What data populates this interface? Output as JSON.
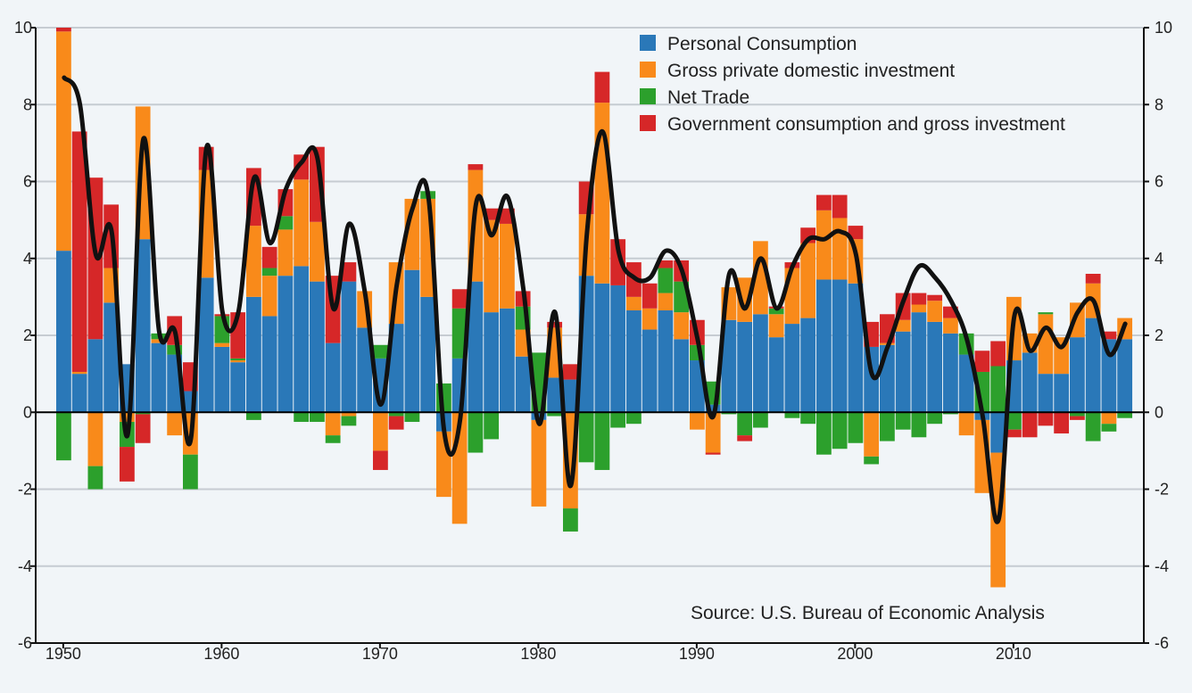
{
  "chart_data": {
    "type": "bar",
    "stacked": true,
    "title": "",
    "xlabel": "",
    "ylabel": "",
    "source": "Source: U.S. Bureau of Economic Analysis",
    "ylim": [
      -6,
      10
    ],
    "y_ticks": [
      "-6",
      "-4",
      "-2",
      "0",
      "2",
      "4",
      "6",
      "8",
      "10"
    ],
    "y_tick_values": [
      -6,
      -4,
      -2,
      0,
      2,
      4,
      6,
      8,
      10
    ],
    "x_ticks": [
      "1950",
      "1960",
      "1970",
      "1980",
      "1990",
      "2000",
      "2010"
    ],
    "x_tick_values": [
      1950,
      1960,
      1970,
      1980,
      1990,
      2000,
      2010
    ],
    "secondary_y_axis": true,
    "grid": "horizontal",
    "legend_position": "top-center",
    "zero_line": true,
    "x": [
      1950,
      1951,
      1952,
      1953,
      1954,
      1955,
      1956,
      1957,
      1958,
      1959,
      1960,
      1961,
      1962,
      1963,
      1964,
      1965,
      1966,
      1967,
      1968,
      1969,
      1970,
      1971,
      1972,
      1973,
      1974,
      1975,
      1976,
      1977,
      1978,
      1979,
      1980,
      1981,
      1982,
      1983,
      1984,
      1985,
      1986,
      1987,
      1988,
      1989,
      1990,
      1991,
      1992,
      1993,
      1994,
      1995,
      1996,
      1997,
      1998,
      1999,
      2000,
      2001,
      2002,
      2003,
      2004,
      2005,
      2006,
      2007,
      2008,
      2009,
      2010,
      2011,
      2012,
      2013,
      2014,
      2015,
      2016,
      2017
    ],
    "series": [
      {
        "name": "Personal Consumption",
        "color": "#2a78b8",
        "values": [
          4.2,
          1.0,
          1.9,
          2.85,
          1.25,
          4.5,
          1.8,
          1.5,
          0.55,
          3.5,
          1.7,
          1.3,
          3.0,
          2.5,
          3.55,
          3.8,
          3.4,
          1.8,
          3.4,
          2.2,
          1.4,
          2.3,
          3.7,
          3.0,
          -0.5,
          1.4,
          3.4,
          2.6,
          2.7,
          1.45,
          -0.2,
          0.9,
          0.85,
          3.55,
          3.35,
          3.3,
          2.65,
          2.15,
          2.65,
          1.9,
          1.35,
          0.2,
          2.4,
          2.35,
          2.55,
          1.95,
          2.3,
          2.45,
          3.45,
          3.45,
          3.35,
          1.7,
          1.75,
          2.1,
          2.6,
          2.35,
          2.05,
          1.5,
          -0.2,
          -1.05,
          1.35,
          1.55,
          1.0,
          1.0,
          1.95,
          2.45,
          1.9,
          1.9
        ]
      },
      {
        "name": "Gross private domestic investment",
        "color": "#f98a1a",
        "values": [
          5.7,
          0.05,
          -1.4,
          0.9,
          -0.25,
          3.45,
          0.1,
          -0.6,
          -1.1,
          2.8,
          0.1,
          0.05,
          1.85,
          1.05,
          1.2,
          2.25,
          1.55,
          -0.6,
          -0.1,
          0.95,
          -1.0,
          1.6,
          1.85,
          2.55,
          -1.7,
          -2.9,
          2.9,
          2.4,
          2.2,
          0.7,
          -2.25,
          1.3,
          -2.5,
          1.6,
          4.7,
          0.0,
          0.35,
          0.55,
          0.45,
          0.7,
          -0.45,
          -1.05,
          0.85,
          1.15,
          1.9,
          0.6,
          1.45,
          1.95,
          1.8,
          1.6,
          1.15,
          -1.15,
          0.05,
          0.3,
          0.2,
          0.55,
          0.4,
          -0.6,
          -1.9,
          -3.5,
          1.65,
          0.5,
          1.55,
          0.95,
          0.9,
          0.9,
          -0.3,
          0.55
        ]
      },
      {
        "name": "Net Trade",
        "color": "#2ca02c",
        "values": [
          -1.25,
          0.0,
          -0.6,
          0.0,
          -0.65,
          -0.05,
          0.15,
          0.25,
          -0.9,
          0.0,
          0.7,
          0.05,
          -0.2,
          0.2,
          0.35,
          -0.25,
          -0.25,
          -0.2,
          -0.25,
          0.0,
          0.35,
          -0.1,
          -0.25,
          0.2,
          0.75,
          1.3,
          -1.05,
          -0.7,
          0.0,
          0.6,
          1.55,
          -0.1,
          -0.6,
          -1.3,
          -1.5,
          -0.4,
          -0.3,
          0.0,
          0.65,
          0.8,
          0.4,
          0.6,
          -0.05,
          -0.6,
          -0.4,
          0.15,
          -0.15,
          -0.3,
          -1.1,
          -0.95,
          -0.8,
          -0.2,
          -0.75,
          -0.45,
          -0.65,
          -0.3,
          -0.05,
          0.55,
          1.05,
          1.2,
          -0.45,
          0.0,
          0.05,
          0.0,
          -0.1,
          -0.75,
          -0.2,
          -0.15
        ]
      },
      {
        "name": "Government consumption and gross investment",
        "color": "#d62728",
        "values": [
          0.1,
          6.25,
          4.2,
          1.65,
          -0.9,
          -0.75,
          0.0,
          0.75,
          0.75,
          0.6,
          0.05,
          1.2,
          1.5,
          0.55,
          0.7,
          0.65,
          1.95,
          1.75,
          0.5,
          0.0,
          -0.5,
          -0.35,
          0.0,
          0.0,
          0.0,
          0.5,
          0.15,
          0.3,
          0.4,
          0.4,
          0.0,
          0.15,
          0.4,
          0.85,
          0.8,
          1.2,
          0.9,
          0.65,
          0.2,
          0.55,
          0.65,
          -0.05,
          0.0,
          -0.15,
          0.0,
          0.05,
          0.15,
          0.4,
          0.4,
          0.6,
          0.35,
          0.65,
          0.75,
          0.7,
          0.3,
          0.15,
          0.3,
          0.0,
          0.55,
          0.65,
          -0.2,
          -0.65,
          -0.35,
          -0.55,
          -0.1,
          0.25,
          0.2,
          0.0
        ]
      }
    ],
    "total_line": {
      "color": "#111111",
      "values": [
        8.7,
        8.0,
        4.1,
        4.7,
        -0.6,
        7.1,
        2.1,
        2.1,
        -0.7,
        6.9,
        2.6,
        2.6,
        6.1,
        4.4,
        5.8,
        6.5,
        6.6,
        2.7,
        4.9,
        3.1,
        0.2,
        3.3,
        5.3,
        5.6,
        -0.5,
        -0.2,
        5.4,
        4.6,
        5.6,
        3.2,
        -0.3,
        2.6,
        -1.9,
        4.6,
        7.3,
        4.2,
        3.5,
        3.5,
        4.2,
        3.7,
        1.9,
        -0.1,
        3.6,
        2.7,
        4.0,
        2.7,
        3.8,
        4.5,
        4.5,
        4.7,
        4.1,
        1.0,
        1.7,
        2.9,
        3.8,
        3.5,
        2.9,
        1.9,
        -0.1,
        -2.8,
        2.5,
        1.6,
        2.2,
        1.7,
        2.6,
        2.9,
        1.5,
        2.3
      ]
    }
  }
}
